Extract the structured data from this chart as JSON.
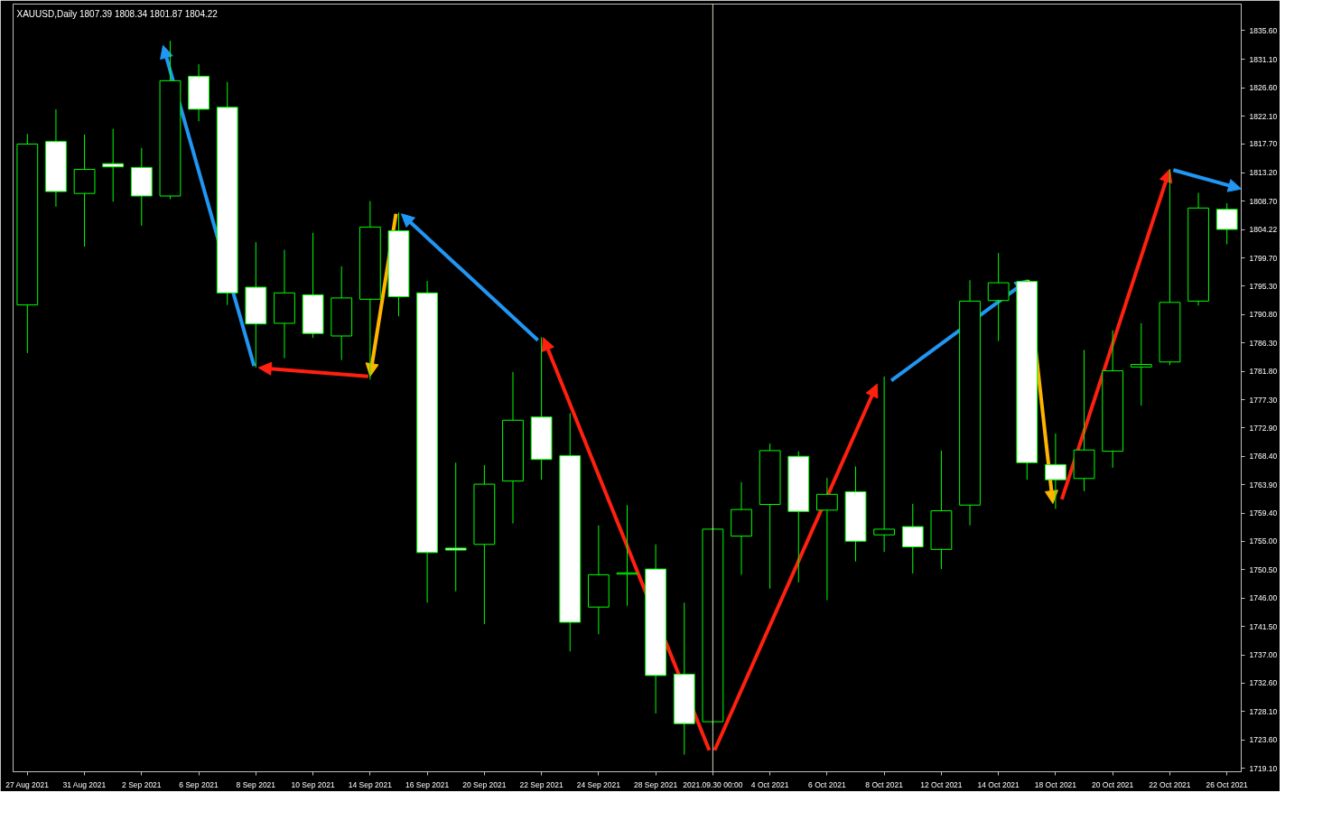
{
  "chart_data": {
    "type": "candlestick",
    "title": "XAUUSD,Daily  1807.39 1808.34 1801.87 1804.22",
    "categories": [
      "27 Aug 2021",
      null,
      "31 Aug 2021",
      null,
      "2 Sep 2021",
      null,
      "6 Sep 2021",
      null,
      "8 Sep 2021",
      null,
      "10 Sep 2021",
      null,
      "14 Sep 2021",
      null,
      "16 Sep 2021",
      null,
      "20 Sep 2021",
      null,
      "22 Sep 2021",
      null,
      "24 Sep 2021",
      null,
      "28 Sep 2021",
      null,
      "2021.09.30 00:00",
      null,
      "4 Oct 2021",
      null,
      "6 Oct 2021",
      null,
      "8 Oct 2021",
      null,
      "12 Oct 2021",
      null,
      "14 Oct 2021",
      null,
      "18 Oct 2021",
      null,
      "20 Oct 2021",
      null,
      "22 Oct 2021",
      null,
      "26 Oct 2021"
    ],
    "ohlc": [
      [
        1792.3,
        1819.3,
        1784.7,
        1817.7
      ],
      [
        1818.1,
        1823.2,
        1807.8,
        1810.2
      ],
      [
        1809.9,
        1819.2,
        1801.5,
        1813.7
      ],
      [
        1814.6,
        1820.1,
        1808.6,
        1814.1
      ],
      [
        1814.0,
        1817.1,
        1804.8,
        1809.5
      ],
      [
        1809.5,
        1834.0,
        1809.0,
        1827.7
      ],
      [
        1828.4,
        1830.3,
        1821.3,
        1823.2
      ],
      [
        1823.5,
        1827.5,
        1792.3,
        1794.2
      ],
      [
        1795.1,
        1802.2,
        1782.4,
        1789.3
      ],
      [
        1789.4,
        1801.0,
        1783.9,
        1794.2
      ],
      [
        1793.9,
        1803.7,
        1787.1,
        1787.8
      ],
      [
        1787.4,
        1798.4,
        1783.6,
        1793.4
      ],
      [
        1793.2,
        1808.7,
        1780.5,
        1804.6
      ],
      [
        1804.0,
        1806.9,
        1790.5,
        1793.6
      ],
      [
        1794.2,
        1796.1,
        1745.3,
        1753.2
      ],
      [
        1753.9,
        1767.4,
        1747.1,
        1753.6
      ],
      [
        1754.5,
        1767.0,
        1741.9,
        1764.0
      ],
      [
        1764.5,
        1781.7,
        1757.8,
        1774.1
      ],
      [
        1774.6,
        1787.2,
        1764.7,
        1767.9
      ],
      [
        1768.5,
        1775.2,
        1737.6,
        1742.2
      ],
      [
        1744.6,
        1757.5,
        1740.3,
        1749.7
      ],
      [
        1749.8,
        1760.7,
        1744.8,
        1750.0
      ],
      [
        1750.6,
        1754.5,
        1727.8,
        1733.8
      ],
      [
        1734.0,
        1745.3,
        1721.3,
        1726.2
      ],
      [
        1726.5,
        1757.2,
        1726.0,
        1756.9
      ],
      [
        1755.8,
        1764.3,
        1749.7,
        1760.0
      ],
      [
        1760.8,
        1770.4,
        1747.5,
        1769.3
      ],
      [
        1768.4,
        1769.2,
        1748.5,
        1759.7
      ],
      [
        1759.9,
        1765.0,
        1745.7,
        1762.4
      ],
      [
        1762.8,
        1766.8,
        1751.8,
        1755.0
      ],
      [
        1756.0,
        1781.0,
        1753.3,
        1756.9
      ],
      [
        1757.3,
        1760.9,
        1749.9,
        1754.1
      ],
      [
        1753.7,
        1769.3,
        1750.6,
        1759.8
      ],
      [
        1760.7,
        1796.2,
        1757.5,
        1792.9
      ],
      [
        1793.0,
        1800.5,
        1786.6,
        1795.8
      ],
      [
        1796.0,
        1796.3,
        1764.7,
        1767.4
      ],
      [
        1767.1,
        1772.0,
        1760.1,
        1764.7
      ],
      [
        1764.9,
        1785.2,
        1762.9,
        1769.4
      ],
      [
        1769.2,
        1788.3,
        1766.6,
        1781.9
      ],
      [
        1782.5,
        1789.4,
        1776.4,
        1782.9
      ],
      [
        1783.3,
        1813.7,
        1782.8,
        1792.7
      ],
      [
        1792.9,
        1810.0,
        1792.2,
        1807.6
      ],
      [
        1807.39,
        1808.34,
        1801.87,
        1804.22
      ]
    ],
    "ylim": [
      1718.6,
      1839.8
    ],
    "yticks": [
      {
        "value": 1835.6,
        "label": "1835.60"
      },
      {
        "value": 1831.1,
        "label": "1831.10"
      },
      {
        "value": 1826.6,
        "label": "1826.60"
      },
      {
        "value": 1822.1,
        "label": "1822.10"
      },
      {
        "value": 1817.7,
        "label": "1817.70"
      },
      {
        "value": 1813.2,
        "label": "1813.20"
      },
      {
        "value": 1808.7,
        "label": "1808.70"
      },
      1804.22,
      {
        "value": 1799.7,
        "label": "1799.70"
      },
      {
        "value": 1795.3,
        "label": "1795.30"
      },
      {
        "value": 1790.8,
        "label": "1790.80"
      },
      {
        "value": 1786.3,
        "label": "1786.30"
      },
      {
        "value": 1781.8,
        "label": "1781.80"
      },
      {
        "value": 1777.3,
        "label": "1777.30"
      },
      {
        "value": 1772.9,
        "label": "1772.90"
      },
      {
        "value": 1768.4,
        "label": "1768.40"
      },
      {
        "value": 1763.9,
        "label": "1763.90"
      },
      {
        "value": 1759.4,
        "label": "1759.40"
      },
      {
        "value": 1755.0,
        "label": "1755.00"
      },
      {
        "value": 1750.5,
        "label": "1750.50"
      },
      {
        "value": 1746.0,
        "label": "1746.00"
      },
      {
        "value": 1741.5,
        "label": "1741.50"
      },
      {
        "value": 1737.0,
        "label": "1737.00"
      },
      {
        "value": 1732.6,
        "label": "1732.60"
      },
      {
        "value": 1728.1,
        "label": "1728.10"
      },
      {
        "value": 1723.6,
        "label": "1723.60"
      },
      {
        "value": 1719.1,
        "label": "1719.10"
      }
    ],
    "ref_lines": [
      {
        "axis": "x",
        "value": "2021.09.30 00:00",
        "color": "#d8d8b0"
      }
    ]
  }
}
